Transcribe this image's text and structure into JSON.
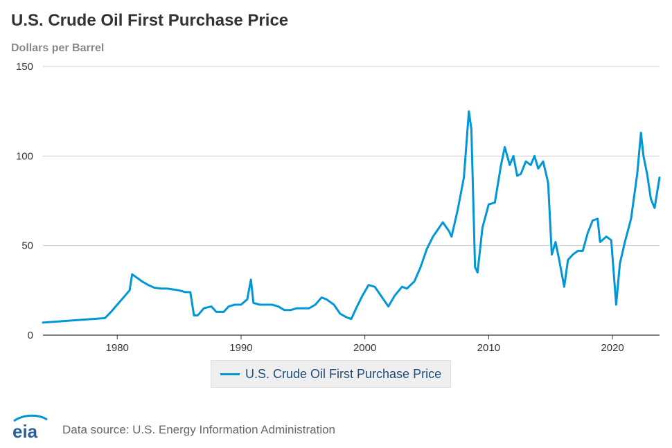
{
  "header": {
    "title": "U.S. Crude Oil First Purchase Price",
    "subtitle": "Dollars per Barrel"
  },
  "footer": {
    "logo_text": "eia",
    "source": "Data source: U.S. Energy Information Administration"
  },
  "colors": {
    "series": "#0096d7",
    "grid": "#cccccc",
    "axis": "#333333"
  },
  "chart_data": {
    "type": "line",
    "title": "U.S. Crude Oil First Purchase Price",
    "subtitle": "Dollars per Barrel",
    "xlabel": "",
    "ylabel": "",
    "xlim": [
      1974,
      2023.8
    ],
    "ylim": [
      0,
      150
    ],
    "xticks": [
      1980,
      1990,
      2000,
      2010,
      2020
    ],
    "yticks": [
      0,
      50,
      100,
      150
    ],
    "grid": "horizontal",
    "legend_position": "bottom-center",
    "series": [
      {
        "name": "U.S. Crude Oil First Purchase Price",
        "color": "#0096d7",
        "x": [
          1974.0,
          1975.0,
          1976.0,
          1977.0,
          1978.0,
          1979.0,
          1979.5,
          1980.0,
          1980.5,
          1981.0,
          1981.2,
          1981.6,
          1982.0,
          1982.5,
          1983.0,
          1983.5,
          1984.0,
          1984.5,
          1985.0,
          1985.5,
          1985.9,
          1986.2,
          1986.5,
          1987.0,
          1987.6,
          1988.0,
          1988.6,
          1989.0,
          1989.5,
          1990.0,
          1990.5,
          1990.8,
          1991.0,
          1991.5,
          1992.0,
          1992.5,
          1993.0,
          1993.5,
          1994.0,
          1994.5,
          1995.0,
          1995.5,
          1996.0,
          1996.5,
          1996.9,
          1997.5,
          1998.0,
          1998.5,
          1998.9,
          1999.3,
          1999.8,
          2000.3,
          2000.8,
          2001.3,
          2001.9,
          2002.4,
          2003.0,
          2003.4,
          2004.0,
          2004.5,
          2005.0,
          2005.5,
          2005.8,
          2006.3,
          2006.8,
          2007.0,
          2007.5,
          2008.0,
          2008.4,
          2008.6,
          2008.9,
          2009.1,
          2009.5,
          2010.0,
          2010.5,
          2011.0,
          2011.3,
          2011.7,
          2012.0,
          2012.3,
          2012.6,
          2013.0,
          2013.4,
          2013.7,
          2014.0,
          2014.4,
          2014.8,
          2015.1,
          2015.4,
          2015.7,
          2016.1,
          2016.4,
          2016.8,
          2017.2,
          2017.6,
          2018.0,
          2018.4,
          2018.8,
          2019.0,
          2019.5,
          2019.9,
          2020.3,
          2020.6,
          2021.0,
          2021.5,
          2022.0,
          2022.3,
          2022.5,
          2022.8,
          2023.1,
          2023.4,
          2023.8
        ],
        "values": [
          7,
          7.5,
          8,
          8.5,
          9,
          9.5,
          13,
          17,
          21,
          25,
          34,
          32,
          30,
          28,
          26.5,
          26,
          26,
          25.5,
          25,
          24,
          24,
          11,
          11,
          15,
          16,
          13,
          13,
          16,
          17,
          17,
          20,
          31,
          18,
          17,
          17,
          17,
          16,
          14,
          14,
          15,
          15,
          15,
          17,
          21,
          20,
          17,
          12,
          10,
          9,
          15,
          22,
          28,
          27,
          22,
          16,
          22,
          27,
          26,
          30,
          38,
          48,
          55,
          58,
          63,
          58,
          55,
          70,
          88,
          125,
          115,
          38,
          35,
          60,
          73,
          74,
          95,
          105,
          95,
          100,
          89,
          90,
          97,
          95,
          100,
          93,
          97,
          85,
          45,
          52,
          42,
          27,
          42,
          45,
          47,
          47,
          57,
          64,
          65,
          52,
          55,
          53,
          17,
          40,
          52,
          65,
          90,
          113,
          100,
          90,
          76,
          71,
          88
        ]
      }
    ]
  }
}
